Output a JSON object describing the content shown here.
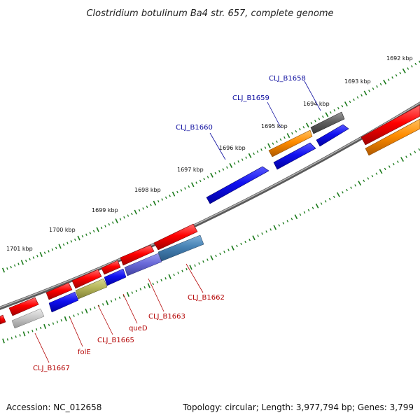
{
  "title": "Clostridium botulinum Ba4 str. 657, complete genome",
  "footer": {
    "accession": "Accession: NC_012658",
    "topology": "Topology: circular; Length: 3,977,794 bp; Genes: 3,799"
  },
  "colors": {
    "backbone": "#7a7a7a",
    "ticks": "#1a7a1a",
    "forward_label": "#0b0b9e",
    "reverse_label": "#b30000"
  },
  "scale_ticks": [
    "1692 kbp",
    "1693 kbp",
    "1694 kbp",
    "1695 kbp",
    "1696 kbp",
    "1697 kbp",
    "1698 kbp",
    "1699 kbp",
    "1700 kbp",
    "1701 kbp"
  ],
  "gene_labels": [
    {
      "text": "CLJ_B1658",
      "strand": "forward"
    },
    {
      "text": "CLJ_B1659",
      "strand": "forward"
    },
    {
      "text": "CLJ_B1660",
      "strand": "forward"
    },
    {
      "text": "CLJ_B1662",
      "strand": "reverse"
    },
    {
      "text": "CLJ_B1663",
      "strand": "reverse"
    },
    {
      "text": "queD",
      "strand": "reverse"
    },
    {
      "text": "CLJ_B1665",
      "strand": "reverse"
    },
    {
      "text": "folE",
      "strand": "reverse"
    },
    {
      "text": "CLJ_B1667",
      "strand": "reverse"
    }
  ]
}
